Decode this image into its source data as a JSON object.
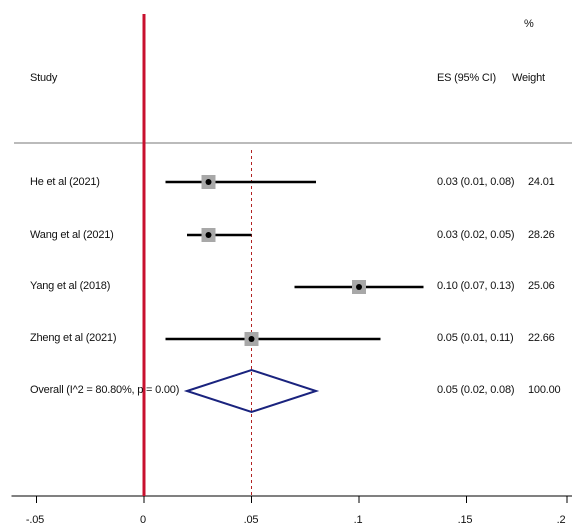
{
  "header": {
    "weight_pct": "%",
    "study_label": "Study",
    "es_label": "ES (95% CI)",
    "weight_label": "Weight"
  },
  "chart_data": {
    "type": "forest",
    "xlim": [
      -0.05,
      0.2
    ],
    "xticks": [
      -0.05,
      0,
      0.05,
      0.1,
      0.15,
      0.2
    ],
    "xtick_labels": [
      "-.05",
      "0",
      ".05",
      ".1",
      ".15",
      ".2"
    ],
    "null_line": 0,
    "overall_line": 0.05,
    "studies": [
      {
        "label": "He et al (2021)",
        "es": 0.03,
        "lo": 0.01,
        "hi": 0.08,
        "es_text": "0.03 (0.01, 0.08)",
        "weight": "24.01"
      },
      {
        "label": "Wang et al (2021)",
        "es": 0.03,
        "lo": 0.02,
        "hi": 0.05,
        "es_text": "0.03 (0.02, 0.05)",
        "weight": "28.26"
      },
      {
        "label": "Yang et al (2018)",
        "es": 0.1,
        "lo": 0.07,
        "hi": 0.13,
        "es_text": "0.10 (0.07, 0.13)",
        "weight": "25.06"
      },
      {
        "label": "Zheng et al (2021)",
        "es": 0.05,
        "lo": 0.01,
        "hi": 0.11,
        "es_text": "0.05 (0.01, 0.11)",
        "weight": "22.66"
      }
    ],
    "overall": {
      "label": "Overall (I^2 = 80.80%, p = 0.00)",
      "es": 0.05,
      "lo": 0.02,
      "hi": 0.08,
      "es_text": "0.05 (0.02, 0.08)",
      "weight": "100.00"
    },
    "colors": {
      "null_line": "#c8102e",
      "diamond": "#1a237e",
      "ci_line": "#000000",
      "box": "#a8a8a8",
      "overall_line": "#b22222"
    }
  }
}
